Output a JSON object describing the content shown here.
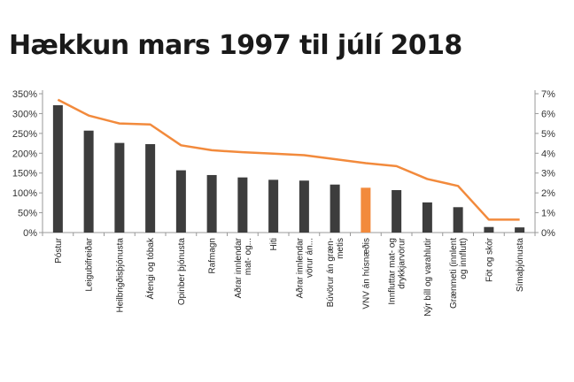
{
  "title": "Hækkun mars 1997 til júlí 2018",
  "chart_data": {
    "type": "bar",
    "title": "Hækkun mars 1997 til júlí 2018",
    "categories": [
      [
        "Póstur"
      ],
      [
        "Leigubifreiðar"
      ],
      [
        "Heilbrigðisþjónusta"
      ],
      [
        "Áfengi og tóbak"
      ],
      [
        "Opinber þjónusta"
      ],
      [
        "Rafmagn"
      ],
      [
        "Aðrar innlendar",
        "mat- og..."
      ],
      [
        "Hiti"
      ],
      [
        "Aðrar innlendar",
        "vörur án..."
      ],
      [
        "Búvörur án græn-",
        "metis"
      ],
      [
        "VNV án húsnæðis"
      ],
      [
        "Innfluttar mat- og",
        "drykkjarvörur"
      ],
      [
        "Nýr bíll og varahlutir"
      ],
      [
        "Grænmeti (innlent",
        "og innflutt)"
      ],
      [
        "Föt og skór"
      ],
      [
        "Símaþjónusta"
      ]
    ],
    "series": [
      {
        "type": "bar",
        "axis": "left",
        "values": [
          321,
          257,
          226,
          223,
          157,
          145,
          139,
          133,
          131,
          121,
          113,
          107,
          76,
          64,
          14,
          13
        ],
        "colors": [
          "#3d3d3d",
          "#3d3d3d",
          "#3d3d3d",
          "#3d3d3d",
          "#3d3d3d",
          "#3d3d3d",
          "#3d3d3d",
          "#3d3d3d",
          "#3d3d3d",
          "#3d3d3d",
          "#f28a3c",
          "#3d3d3d",
          "#3d3d3d",
          "#3d3d3d",
          "#3d3d3d",
          "#3d3d3d"
        ]
      },
      {
        "type": "line",
        "axis": "right",
        "color": "#f28a3c",
        "values": [
          6.7,
          5.9,
          5.5,
          5.45,
          4.4,
          4.15,
          4.05,
          3.98,
          3.9,
          3.7,
          3.5,
          3.35,
          2.7,
          2.35,
          0.65,
          0.65
        ]
      }
    ],
    "y_left": {
      "ylim": [
        0,
        350
      ],
      "ticks": [
        0,
        50,
        100,
        150,
        200,
        250,
        300,
        350
      ],
      "tick_labels": [
        "0%",
        "50%",
        "100%",
        "150%",
        "200%",
        "250%",
        "300%",
        "350%"
      ]
    },
    "y_right": {
      "ylim": [
        0,
        7
      ],
      "ticks": [
        0,
        1,
        2,
        3,
        4,
        5,
        6,
        7
      ],
      "tick_labels": [
        "0%",
        "1%",
        "2%",
        "3%",
        "4%",
        "5%",
        "6%",
        "7%"
      ]
    },
    "grid": false,
    "legend": "none",
    "colors": {
      "bar": "#3d3d3d",
      "highlight": "#f28a3c",
      "line": "#f28a3c",
      "axis": "#999999"
    }
  }
}
